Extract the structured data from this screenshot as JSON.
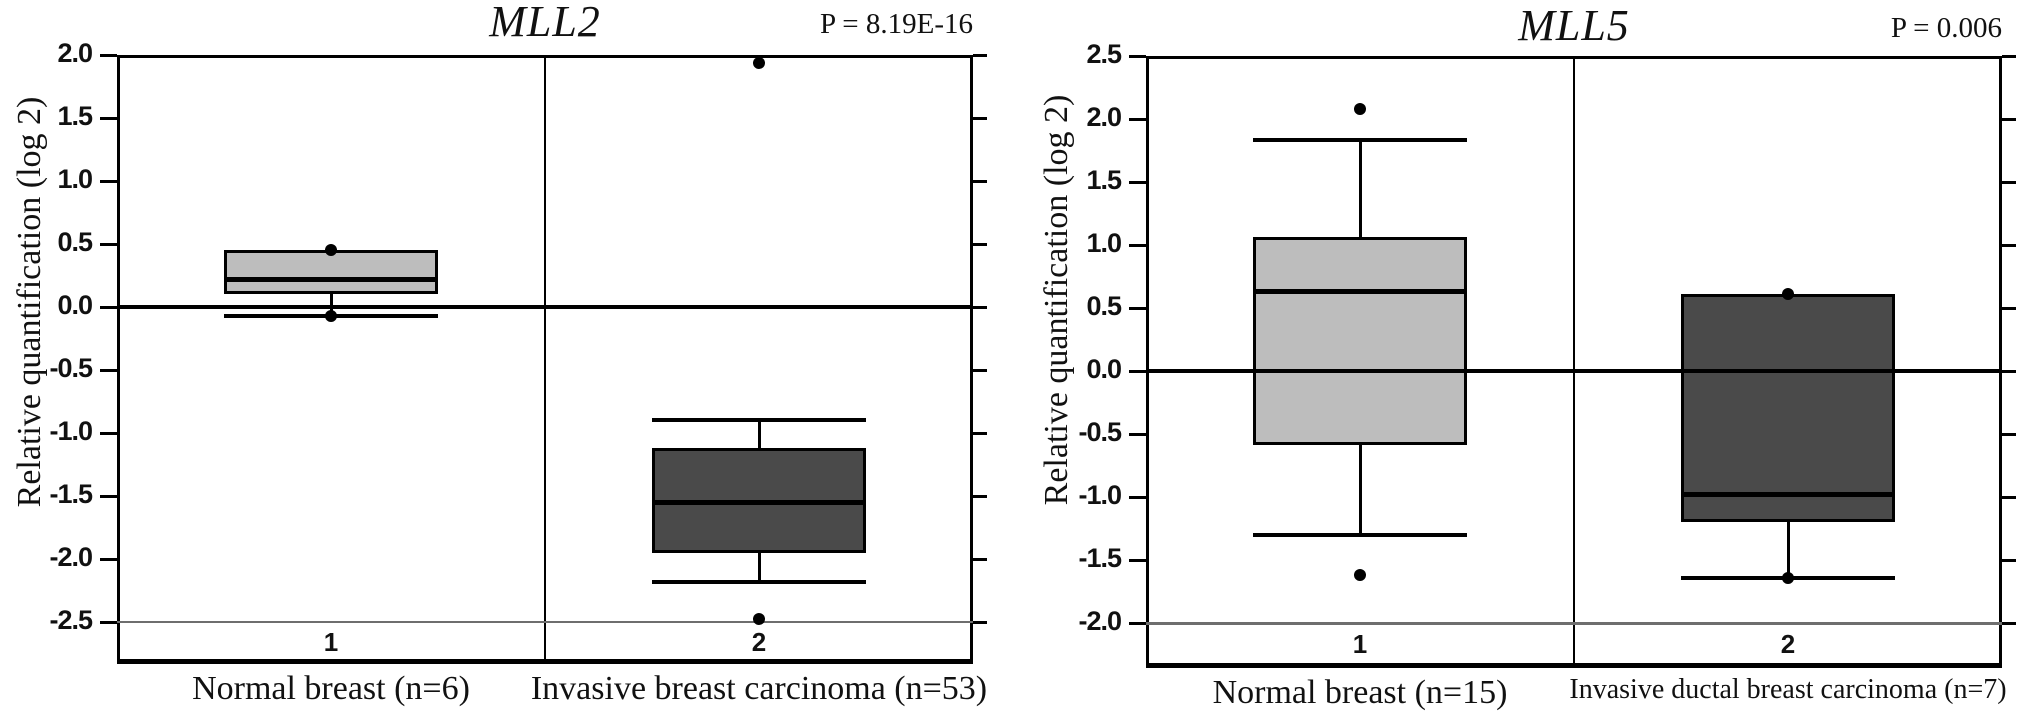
{
  "figure_title": "",
  "colors": {
    "light_box_fill": "#bdbdbd",
    "dark_box_fill": "#4a4a4a",
    "line": "#000000",
    "floor_line": "#6e6e6e"
  },
  "chart_data": [
    {
      "type": "box",
      "title": "MLL2",
      "p_value": "P = 8.19E-16",
      "ylabel": "Relative quantification (log 2)",
      "xlabel": "",
      "ylim": [
        -2.5,
        2.0
      ],
      "grid": "zero-line and bottom rule only",
      "yticks": [
        "2.0",
        "1.5",
        "1.0",
        "0.5",
        "0.0",
        "-0.5",
        "-1.0",
        "-1.5",
        "-2.0",
        "-2.5"
      ],
      "zero_line": 0.0,
      "floor_line": -2.5,
      "groups": [
        {
          "position": "1",
          "label": "Normal breast (n=6)",
          "shade": "light",
          "q1": 0.1,
          "median": 0.22,
          "q3": 0.45,
          "whisker_low": -0.07,
          "whisker_high": 0.45,
          "outliers": [
            0.45,
            -0.07
          ]
        },
        {
          "position": "2",
          "label": "Invasive breast carcinoma (n=53)",
          "shade": "dark",
          "q1": -1.95,
          "median": -1.55,
          "q3": -1.12,
          "whisker_low": -2.18,
          "whisker_high": -0.9,
          "outliers": [
            1.94,
            -2.48
          ]
        }
      ]
    },
    {
      "type": "box",
      "title": "MLL5",
      "p_value": "P = 0.006",
      "ylabel": "Relative quantification (log 2)",
      "xlabel": "",
      "ylim": [
        -2.0,
        2.5
      ],
      "grid": "zero-line and bottom rule only",
      "yticks": [
        "2.5",
        "2.0",
        "1.5",
        "1.0",
        "0.5",
        "0.0",
        "-0.5",
        "-1.0",
        "-1.5",
        "-2.0"
      ],
      "zero_line": 0.0,
      "floor_line": -2.0,
      "groups": [
        {
          "position": "1",
          "label": "Normal breast (n=15)",
          "shade": "light",
          "q1": -0.59,
          "median": 0.63,
          "q3": 1.06,
          "whisker_low": -1.3,
          "whisker_high": 1.83,
          "outliers": [
            2.08,
            -1.62
          ]
        },
        {
          "position": "2",
          "label": "Invasive ductal breast carcinoma (n=7)",
          "shade": "dark",
          "q1": -1.2,
          "median": -0.98,
          "q3": 0.61,
          "whisker_low": -1.64,
          "whisker_high": 0.61,
          "outliers": [
            0.61,
            -1.64
          ]
        }
      ]
    }
  ]
}
